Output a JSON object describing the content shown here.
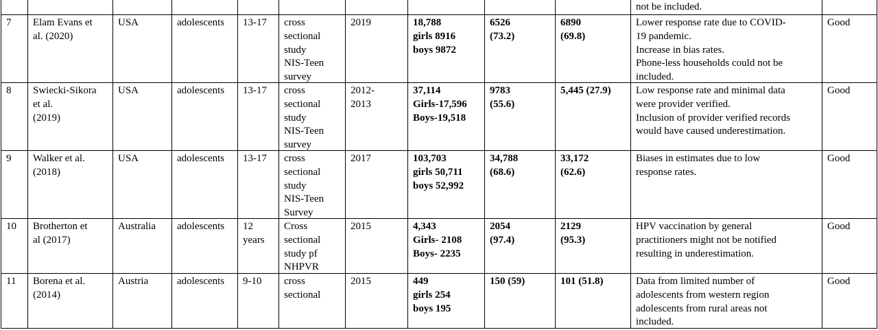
{
  "table": {
    "rows": [
      {
        "limitations": [
          "not be included."
        ]
      },
      {
        "id": [
          "7"
        ],
        "study": [
          "Elam Evans et",
          "al. (2020)"
        ],
        "country": [
          "USA"
        ],
        "population": [
          "adolescents"
        ],
        "age": [
          "13-17"
        ],
        "design": [
          "cross",
          "sectional",
          "study",
          "NIS-Teen",
          "survey"
        ],
        "year": [
          "2019"
        ],
        "sample": [
          "18,788",
          "girls 8916",
          "boys  9872"
        ],
        "count_a": [
          "6526",
          "(73.2)"
        ],
        "count_b": [
          "6890",
          "(69.8)"
        ],
        "limitations": [
          "Lower response rate due to COVID-",
          "19 pandemic.",
          "Increase in bias rates.",
          "Phone-less households could not be",
          "included."
        ],
        "quality": [
          "Good"
        ]
      },
      {
        "id": [
          "8"
        ],
        "study": [
          "Swiecki-Sikora",
          "et al.",
          "(2019)"
        ],
        "country": [
          "USA"
        ],
        "population": [
          "adolescents"
        ],
        "age": [
          "13-17"
        ],
        "design": [
          "cross",
          "sectional",
          "study",
          "NIS-Teen",
          "survey"
        ],
        "year": [
          "2012-",
          "2013"
        ],
        "sample": [
          "37,114",
          "Girls-17,596",
          "Boys-19,518"
        ],
        "count_a": [
          "9783",
          "(55.6)"
        ],
        "count_b": [
          "5,445 (27.9)"
        ],
        "limitations": [
          "Low response rate and minimal data",
          "were provider verified.",
          "Inclusion of provider verified records",
          "would have caused underestimation."
        ],
        "quality": [
          "Good"
        ]
      },
      {
        "id": [
          "9"
        ],
        "study": [
          "Walker et al.",
          "(2018)"
        ],
        "country": [
          "USA"
        ],
        "population": [
          "adolescents"
        ],
        "age": [
          "13-17"
        ],
        "design": [
          "cross",
          "sectional",
          "study",
          "NIS-Teen",
          "Survey"
        ],
        "year": [
          "2017"
        ],
        "sample": [
          "103,703",
          "girls 50,711",
          "boys 52,992"
        ],
        "count_a": [
          "34,788",
          "(68.6)"
        ],
        "count_b": [
          "33,172",
          "(62.6)"
        ],
        "limitations": [
          "Biases in estimates due to low",
          "response rates."
        ],
        "quality": [
          "Good"
        ]
      },
      {
        "id": [
          "10"
        ],
        "study": [
          "Brotherton et",
          "al (2017)"
        ],
        "country": [
          "Australia"
        ],
        "population": [
          "adolescents"
        ],
        "age": [
          "12",
          "years"
        ],
        "design": [
          "Cross",
          "sectional",
          "study pf",
          "NHPVR"
        ],
        "year": [
          "2015"
        ],
        "sample": [
          "4,343",
          "Girls- 2108",
          "Boys- 2235"
        ],
        "count_a": [
          "2054",
          "(97.4)"
        ],
        "count_b": [
          "2129",
          "(95.3)"
        ],
        "limitations": [
          "HPV vaccination by general",
          "practitioners might not be notified",
          "resulting in underestimation."
        ],
        "quality": [
          "Good"
        ]
      },
      {
        "id": [
          "11"
        ],
        "study": [
          "Borena et al.",
          "(2014)"
        ],
        "country": [
          "Austria"
        ],
        "population": [
          "adolescents"
        ],
        "age": [
          "9-10"
        ],
        "design": [
          "cross",
          "sectional"
        ],
        "year": [
          "2015"
        ],
        "sample": [
          "449",
          "girls 254",
          "boys 195"
        ],
        "count_a": [
          "150 (59)"
        ],
        "count_b": [
          "101 (51.8)"
        ],
        "limitations": [
          "Data from limited number of",
          "adolescents from western region",
          "adolescents from rural areas not",
          "included."
        ],
        "quality": [
          "Good"
        ]
      }
    ]
  }
}
